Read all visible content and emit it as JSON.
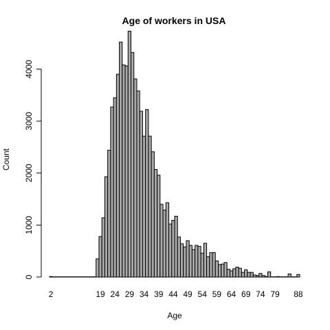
{
  "chart_data": {
    "type": "bar",
    "title": "Age of workers in USA",
    "xlabel": "Age",
    "ylabel": "Count",
    "ylim": [
      0,
      4800
    ],
    "y_ticks": [
      0,
      1000,
      2000,
      3000,
      4000
    ],
    "x_tick_labels": [
      "2",
      "19",
      "24",
      "29",
      "34",
      "39",
      "44",
      "49",
      "54",
      "59",
      "64",
      "69",
      "74",
      "79",
      "88"
    ],
    "grid": false,
    "legend": "none",
    "bar_color": "#a9a9a9",
    "categories": [
      "2",
      "3",
      "4",
      "5",
      "6",
      "7",
      "8",
      "9",
      "10",
      "11",
      "12",
      "13",
      "14",
      "15",
      "16",
      "17",
      "18",
      "19",
      "20",
      "21",
      "22",
      "23",
      "24",
      "25",
      "26",
      "27",
      "28",
      "29",
      "30",
      "31",
      "32",
      "33",
      "34",
      "35",
      "36",
      "37",
      "38",
      "39",
      "40",
      "41",
      "42",
      "43",
      "44",
      "45",
      "46",
      "47",
      "48",
      "49",
      "50",
      "51",
      "52",
      "53",
      "54",
      "55",
      "56",
      "57",
      "58",
      "59",
      "60",
      "61",
      "62",
      "63",
      "64",
      "65",
      "66",
      "67",
      "68",
      "69",
      "70",
      "71",
      "72",
      "73",
      "74",
      "75",
      "76",
      "77",
      "78",
      "79",
      "80",
      "81",
      "82",
      "83",
      "84",
      "85",
      "86",
      "88"
    ],
    "values": [
      10,
      5,
      5,
      5,
      5,
      5,
      5,
      5,
      5,
      5,
      5,
      5,
      5,
      5,
      5,
      5,
      350,
      780,
      1140,
      1930,
      2440,
      3270,
      3450,
      3900,
      4520,
      4080,
      4060,
      4730,
      4320,
      3810,
      3580,
      3190,
      2710,
      3220,
      2710,
      2410,
      2070,
      1960,
      1400,
      1290,
      1430,
      1020,
      1090,
      1170,
      770,
      640,
      580,
      700,
      610,
      530,
      610,
      590,
      460,
      650,
      390,
      470,
      470,
      310,
      240,
      250,
      280,
      150,
      120,
      160,
      190,
      170,
      90,
      140,
      90,
      90,
      40,
      30,
      70,
      30,
      10,
      100,
      5,
      5,
      10,
      5,
      5,
      5,
      60,
      5,
      5,
      50
    ]
  }
}
